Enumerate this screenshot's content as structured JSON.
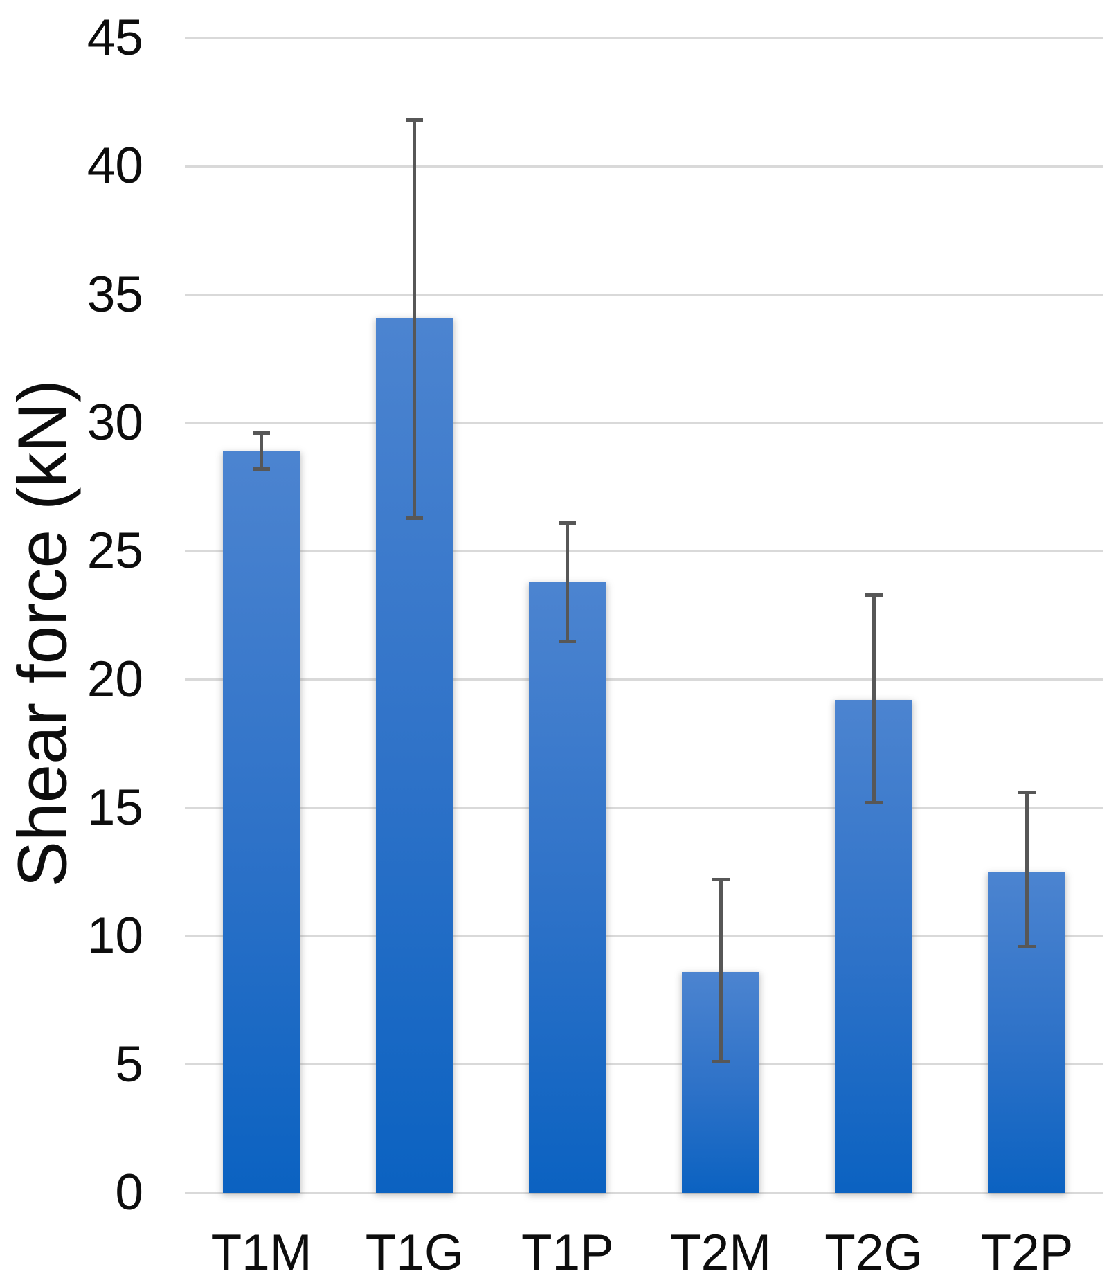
{
  "chart_data": {
    "type": "bar",
    "title": "",
    "xlabel": "",
    "ylabel": "Shear force (kN)",
    "categories": [
      "T1M",
      "T1G",
      "T1P",
      "T2M",
      "T2G",
      "T2P"
    ],
    "series": [
      {
        "name": "Shear force (kN)",
        "values": [
          28.9,
          34.1,
          23.8,
          8.6,
          19.2,
          12.5
        ]
      }
    ],
    "error_bars": {
      "upper": [
        29.6,
        41.8,
        26.1,
        12.2,
        23.3,
        15.6
      ],
      "lower": [
        28.2,
        26.3,
        21.5,
        5.1,
        15.2,
        9.6
      ]
    },
    "ylim": [
      0,
      45
    ],
    "yticks": [
      45,
      40,
      35,
      30,
      25,
      20,
      15,
      10,
      5,
      0
    ],
    "grid": "horizontal-only",
    "legend": "none",
    "colors": {
      "bar_gradient_top": "#4a82ce",
      "bar_gradient_bottom": "#0b62c1",
      "error_bar": "#575757",
      "gridline": "#d9d9d9",
      "text": "#0d0d0d",
      "background": "#ffffff"
    }
  }
}
